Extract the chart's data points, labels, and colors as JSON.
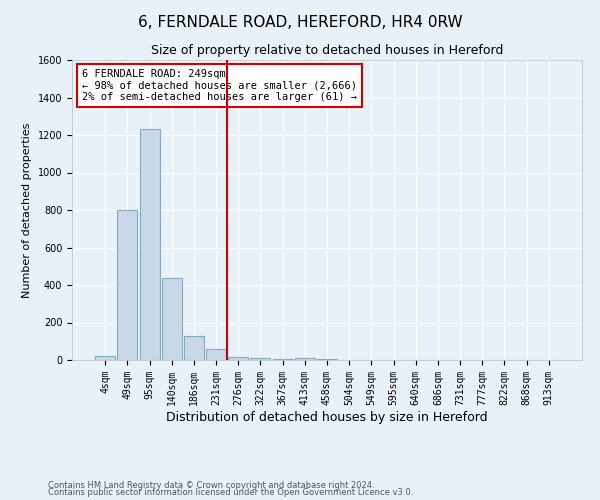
{
  "title1": "6, FERNDALE ROAD, HEREFORD, HR4 0RW",
  "title2": "Size of property relative to detached houses in Hereford",
  "xlabel": "Distribution of detached houses by size in Hereford",
  "ylabel": "Number of detached properties",
  "footnote1": "Contains HM Land Registry data © Crown copyright and database right 2024.",
  "footnote2": "Contains public sector information licensed under the Open Government Licence v3.0.",
  "bins": [
    "4sqm",
    "49sqm",
    "95sqm",
    "140sqm",
    "186sqm",
    "231sqm",
    "276sqm",
    "322sqm",
    "367sqm",
    "413sqm",
    "458sqm",
    "504sqm",
    "549sqm",
    "595sqm",
    "640sqm",
    "686sqm",
    "731sqm",
    "777sqm",
    "822sqm",
    "868sqm",
    "913sqm"
  ],
  "values": [
    20,
    800,
    1230,
    440,
    130,
    60,
    15,
    10,
    5,
    10,
    5,
    0,
    0,
    0,
    0,
    0,
    0,
    0,
    0,
    0,
    0
  ],
  "bar_color": "#c8d8e8",
  "bar_edge_color": "#7aafc8",
  "red_line_x": 5.5,
  "red_line_color": "#cc0000",
  "ylim": [
    0,
    1600
  ],
  "yticks": [
    0,
    200,
    400,
    600,
    800,
    1000,
    1200,
    1400,
    1600
  ],
  "annotation_line1": "6 FERNDALE ROAD: 249sqm",
  "annotation_line2": "← 98% of detached houses are smaller (2,666)",
  "annotation_line3": "2% of semi-detached houses are larger (61) →",
  "annotation_box_color": "#ffffff",
  "annotation_box_edge_color": "#cc0000",
  "bg_color": "#e8f0f8",
  "plot_bg_color": "#e8f0f8",
  "grid_color": "#ffffff",
  "title1_fontsize": 11,
  "title2_fontsize": 9,
  "xlabel_fontsize": 9,
  "ylabel_fontsize": 8,
  "tick_fontsize": 7,
  "annot_fontsize": 7.5,
  "footnote_fontsize": 6
}
